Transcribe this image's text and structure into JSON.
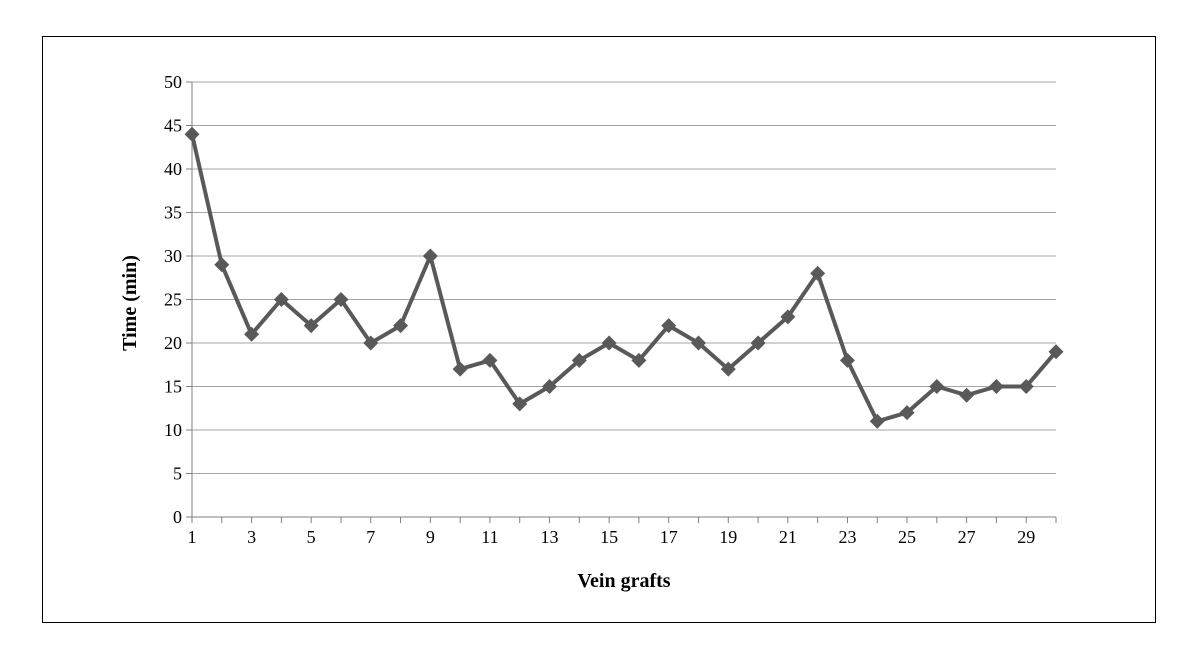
{
  "chart_data": {
    "type": "line",
    "xlabel": "Vein grafts",
    "ylabel": "Time (min)",
    "x": [
      1,
      2,
      3,
      4,
      5,
      6,
      7,
      8,
      9,
      10,
      11,
      12,
      13,
      14,
      15,
      16,
      17,
      18,
      19,
      20,
      21,
      22,
      23,
      24,
      25,
      26,
      27,
      28,
      29,
      30
    ],
    "x_tick_labels": [
      "1",
      "3",
      "5",
      "7",
      "9",
      "11",
      "13",
      "15",
      "17",
      "19",
      "21",
      "23",
      "25",
      "27",
      "29"
    ],
    "y_tick_labels": [
      "0",
      "5",
      "10",
      "15",
      "20",
      "25",
      "30",
      "35",
      "40",
      "45",
      "50"
    ],
    "ylim": [
      0,
      50
    ],
    "yticks": [
      0,
      5,
      10,
      15,
      20,
      25,
      30,
      35,
      40,
      45,
      50
    ],
    "grid": "horizontal",
    "legend": "none",
    "series": [
      {
        "values": [
          44,
          29,
          21,
          25,
          22,
          25,
          20,
          22,
          30,
          17,
          18,
          13,
          15,
          18,
          20,
          18,
          22,
          20,
          17,
          20,
          23,
          28,
          18,
          11,
          12,
          15,
          14,
          15,
          15,
          19
        ],
        "color": "#595959",
        "marker": "diamond"
      }
    ]
  }
}
